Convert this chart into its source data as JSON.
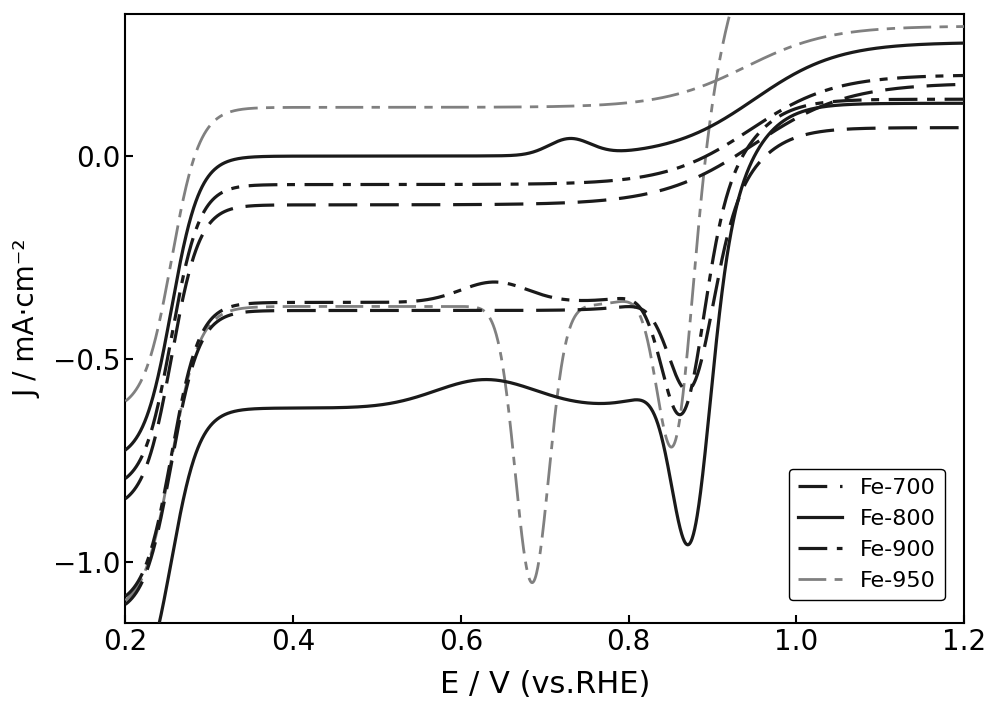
{
  "title": "",
  "xlabel": "E / V (vs.RHE)",
  "ylabel": "J / mA·cm⁻²",
  "xlim": [
    0.2,
    1.2
  ],
  "ylim": [
    -1.15,
    0.35
  ],
  "xticks": [
    0.2,
    0.4,
    0.6,
    0.8,
    1.0,
    1.2
  ],
  "yticks": [
    -1.0,
    -0.5,
    0.0
  ],
  "background_color": "#ffffff",
  "xlabel_fontsize": 22,
  "ylabel_fontsize": 20,
  "tick_fontsize": 20,
  "legend_fontsize": 16,
  "linewidth_dark": 2.3,
  "linewidth_gray": 2.0
}
